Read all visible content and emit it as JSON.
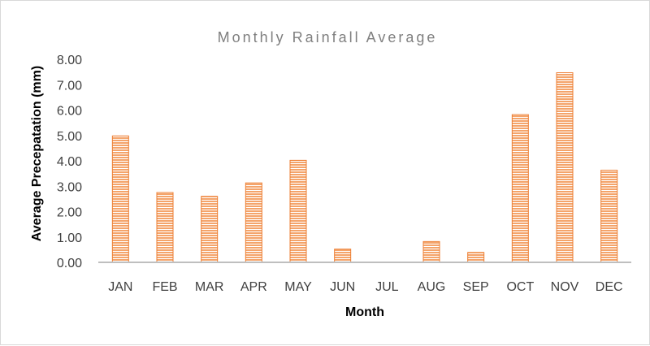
{
  "chart_data": {
    "type": "bar",
    "title": "Monthly Rainfall Average",
    "xlabel": "Month",
    "ylabel": "Average Precepatation (mm)",
    "categories": [
      "JAN",
      "FEB",
      "MAR",
      "APR",
      "MAY",
      "JUN",
      "JUL",
      "AUG",
      "SEP",
      "OCT",
      "NOV",
      "DEC"
    ],
    "values": [
      4.98,
      2.75,
      2.6,
      3.13,
      4.02,
      0.52,
      0.0,
      0.82,
      0.39,
      5.82,
      7.47,
      3.63
    ],
    "ylim": [
      0,
      8
    ],
    "yticks": [
      "0.00",
      "1.00",
      "2.00",
      "3.00",
      "4.00",
      "5.00",
      "6.00",
      "7.00",
      "8.00"
    ],
    "grid": false,
    "legend": "none",
    "bar_fill_color": "#f4a46b",
    "bar_stripe_color": "#ffffff",
    "bar_edge_color": "#ed7d31",
    "axis_color": "#bfbfbf"
  }
}
